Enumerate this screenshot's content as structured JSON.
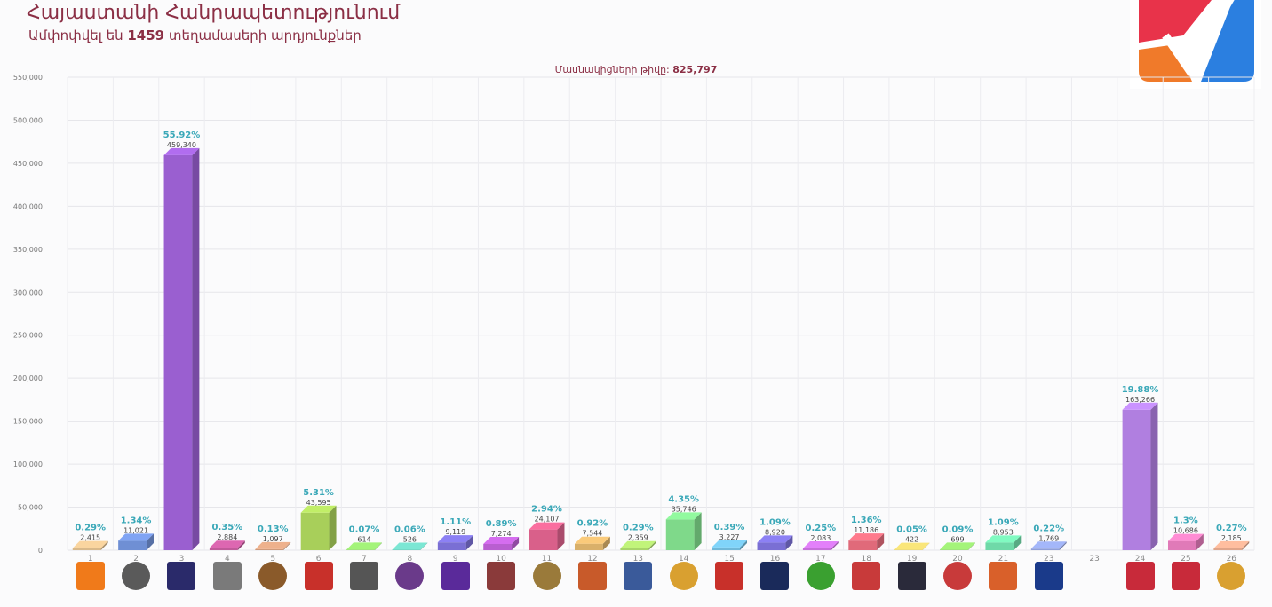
{
  "header": {
    "title": "Հայաստանի Հանրապետությունում",
    "subtitle_pre": "Ամփոփվել են",
    "subtitle_count": "1459",
    "subtitle_post": "տեղամասերի արդյունքներ",
    "voters_label": "Մասնակիցների թիվը:",
    "voters_value": "825,797"
  },
  "brand_colors": {
    "red": "#e8334a",
    "orange": "#f07a2a",
    "blue": "#2b7fe0"
  },
  "chart_data": {
    "type": "bar",
    "title": "",
    "xlabel": "",
    "ylabel": "",
    "ylim": [
      0,
      550000
    ],
    "y_ticks": [
      0,
      50000,
      100000,
      150000,
      200000,
      250000,
      300000,
      350000,
      400000,
      450000,
      500000,
      550000
    ],
    "y_tick_labels": [
      "0",
      "50,000",
      "100,000",
      "150,000",
      "200,000",
      "250,000",
      "300,000",
      "350,000",
      "400,000",
      "450,000",
      "500,000",
      "550,000"
    ],
    "grid": true,
    "categories": [
      "1",
      "2",
      "3",
      "4",
      "5",
      "6",
      "7",
      "8",
      "9",
      "10",
      "11",
      "12",
      "13",
      "14",
      "15",
      "16",
      "17",
      "18",
      "19",
      "20",
      "21",
      "23",
      "23",
      "24",
      "25",
      "26"
    ],
    "values": [
      2415,
      11021,
      459340,
      2884,
      1097,
      43595,
      614,
      526,
      9119,
      7274,
      24107,
      7544,
      2359,
      35746,
      3227,
      8920,
      2083,
      11186,
      422,
      699,
      8953,
      1769,
      0,
      163266,
      10686,
      2185
    ],
    "value_labels": [
      "2,415",
      "11,021",
      "459,340",
      "2,884",
      "1,097",
      "43,595",
      "614",
      "526",
      "9,119",
      "7,274",
      "24,107",
      "7,544",
      "2,359",
      "35,746",
      "3,227",
      "8,920",
      "2,083",
      "11,186",
      "422",
      "699",
      "8,953",
      "1,769",
      "",
      "163,266",
      "10,686",
      "2,185"
    ],
    "percent_labels": [
      "0.29%",
      "1.34%",
      "55.92%",
      "0.35%",
      "0.13%",
      "5.31%",
      "0.07%",
      "0.06%",
      "1.11%",
      "0.89%",
      "2.94%",
      "0.92%",
      "0.29%",
      "4.35%",
      "0.39%",
      "1.09%",
      "0.25%",
      "1.36%",
      "0.05%",
      "0.09%",
      "1.09%",
      "0.22%",
      "",
      "19.88%",
      "1.3%",
      "0.27%"
    ],
    "bar_colors": [
      "#d9b98a",
      "#6f8fd4",
      "#9a5fd0",
      "#c05a9a",
      "#cf9a7a",
      "#a8cf5a",
      "#8fd46a",
      "#6cc9b8",
      "#7a6fd4",
      "#b95fd0",
      "#d9608a",
      "#d9b06a",
      "#a8d46a",
      "#7fd98a",
      "#6fb8d9",
      "#7a6fd4",
      "#c56fd9",
      "#e06a7a",
      "#d9c86a",
      "#8fd46a",
      "#6fd9a8",
      "#8f9fd9",
      "#c8a8e0",
      "#b07fe0",
      "#e07ab8",
      "#e0a58a"
    ],
    "logo_colors": [
      "#f07a1a",
      "#5a5a5a",
      "#2a2a6a",
      "#7a7a7a",
      "#8a5a2a",
      "#c8302a",
      "#555555",
      "#6a3a8a",
      "#5a2a9a",
      "#8a3a3a",
      "#9a7a3a",
      "#c85a2a",
      "#3a5a9a",
      "#d9a030",
      "#c8302a",
      "#1a2a5a",
      "#3aa030",
      "#c83a3a",
      "#2a2a3a",
      "#c83a3a",
      "#d9602a",
      "#1a3a8a",
      "#ffffff",
      "#c82a3a",
      "#c82a3a",
      "#d9a030"
    ],
    "logo_icons": [
      "orange-square-logo",
      "spiral-logo",
      "navy-emblem-logo",
      "crest-logo",
      "stripes-logo",
      "star-logo",
      "script-logo",
      "shield-logo",
      "purple-square-logo",
      "mountain-logo",
      "round-emblem-logo",
      "sun-emblem-logo",
      "banner-logo",
      "wing-logo",
      "red-figure-logo",
      "navy-square-logo",
      "green-shield-logo",
      "bird-logo",
      "dark-square-logo",
      "arch-logo",
      "phoenix-logo",
      "flag-logo",
      "",
      "text-logo",
      "archer-logo",
      "gold-bird-logo"
    ]
  }
}
